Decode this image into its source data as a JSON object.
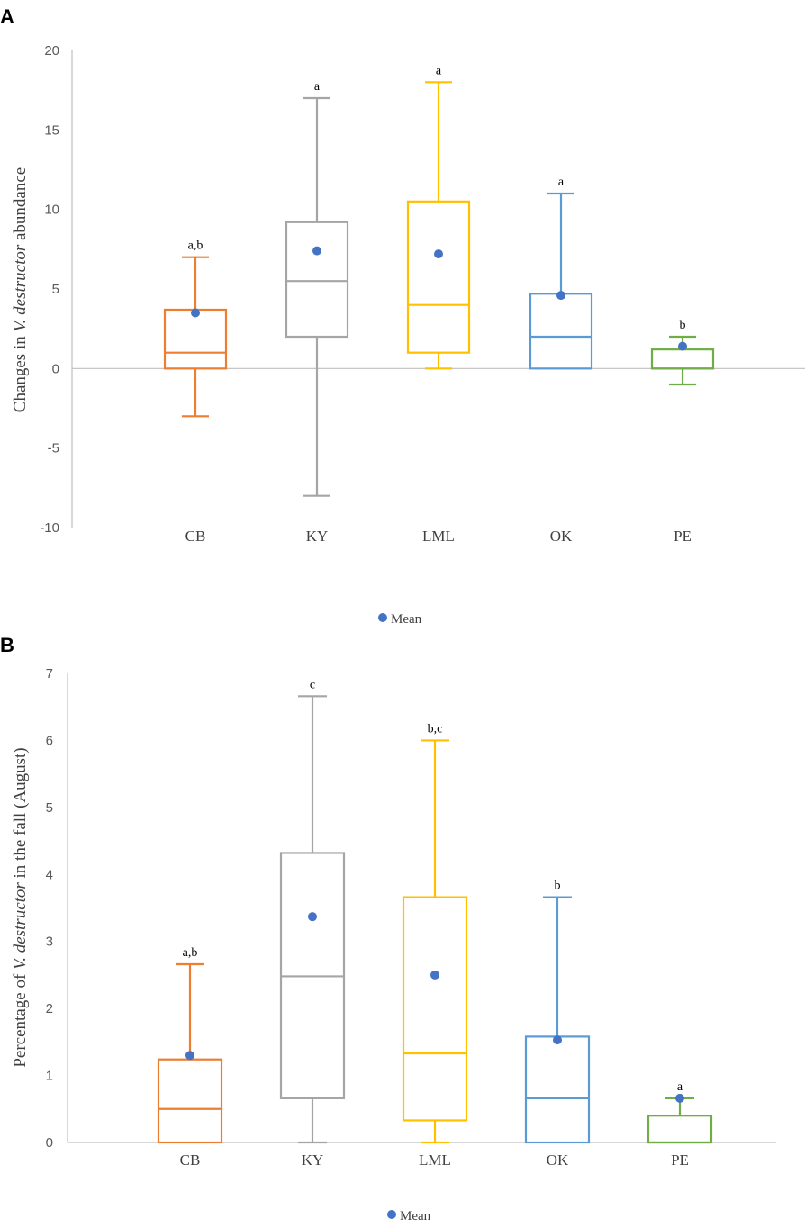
{
  "chart_data": [
    {
      "panel": "A",
      "type": "box",
      "categories": [
        "CB",
        "KY",
        "LML",
        "OK",
        "PE"
      ],
      "colors": [
        "#ED7D31",
        "#A5A5A5",
        "#FFC000",
        "#5B9BD5",
        "#70AD47"
      ],
      "ylabel_prefix": "Changes in ",
      "ylabel_italic": "V. destructor",
      "ylabel_suffix": " abundance",
      "ylim": [
        -10,
        20
      ],
      "yticks": [
        -10,
        -5,
        0,
        5,
        10,
        15,
        20
      ],
      "boxes": [
        {
          "min": -3,
          "q1": 0,
          "median": 1,
          "q3": 3.7,
          "max": 7,
          "mean": 3.5,
          "sig": "a,b"
        },
        {
          "min": -8,
          "q1": 2,
          "median": 5.5,
          "q3": 9.2,
          "max": 17,
          "mean": 7.4,
          "sig": "a"
        },
        {
          "min": 0,
          "q1": 1,
          "median": 4,
          "q3": 10.5,
          "max": 18,
          "mean": 7.2,
          "sig": "a"
        },
        {
          "min": 0,
          "q1": 0,
          "median": 2,
          "q3": 4.7,
          "max": 11,
          "mean": 4.6,
          "sig": "a"
        },
        {
          "min": -1,
          "q1": 0,
          "median": 0,
          "q3": 1.2,
          "max": 2,
          "mean": 1.4,
          "sig": "b"
        }
      ],
      "legend": "Mean"
    },
    {
      "panel": "B",
      "type": "box",
      "categories": [
        "CB",
        "KY",
        "LML",
        "OK",
        "PE"
      ],
      "colors": [
        "#ED7D31",
        "#A5A5A5",
        "#FFC000",
        "#5B9BD5",
        "#70AD47"
      ],
      "ylabel_prefix": "Percentage of ",
      "ylabel_italic": "V. destructor",
      "ylabel_suffix": "  in the fall (August)",
      "ylim": [
        0,
        7
      ],
      "yticks": [
        0,
        1,
        2,
        3,
        4,
        5,
        6,
        7
      ],
      "boxes": [
        {
          "min": 0,
          "q1": 0,
          "median": 0.5,
          "q3": 1.24,
          "max": 2.66,
          "mean": 1.3,
          "sig": "a,b"
        },
        {
          "min": 0,
          "q1": 0.66,
          "median": 2.48,
          "q3": 4.32,
          "max": 6.66,
          "mean": 3.37,
          "sig": "c"
        },
        {
          "min": 0,
          "q1": 0.33,
          "median": 1.33,
          "q3": 3.66,
          "max": 6.0,
          "mean": 2.5,
          "sig": "b,c"
        },
        {
          "min": 0,
          "q1": 0,
          "median": 0.66,
          "q3": 1.58,
          "max": 3.66,
          "mean": 1.53,
          "sig": "b"
        },
        {
          "min": 0,
          "q1": 0,
          "median": 0,
          "q3": 0.4,
          "max": 0.66,
          "mean": 0.66,
          "sig": "a"
        }
      ],
      "legend": "Mean"
    }
  ],
  "mean_marker_color": "#4472C4"
}
